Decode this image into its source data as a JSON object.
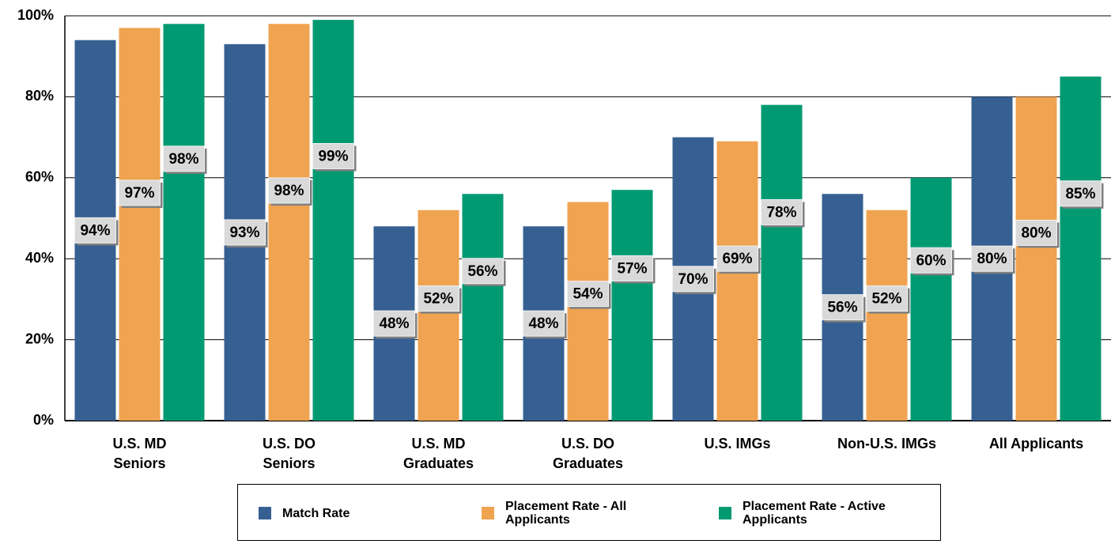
{
  "chart_data": {
    "type": "bar",
    "categories": [
      [
        "U.S. MD",
        "Seniors"
      ],
      [
        "U.S. DO",
        "Seniors"
      ],
      [
        "U.S. MD",
        "Graduates"
      ],
      [
        "U.S. DO",
        "Graduates"
      ],
      [
        "U.S. IMGs"
      ],
      [
        "Non-U.S. IMGs"
      ],
      [
        "All Applicants"
      ]
    ],
    "series": [
      {
        "name": "Match Rate",
        "color": "#376092",
        "values": [
          94,
          93,
          48,
          48,
          70,
          56,
          80
        ],
        "value_labels": [
          "94%",
          "93%",
          "48%",
          "48%",
          "70%",
          "56%",
          "80%"
        ]
      },
      {
        "name": "Placement Rate - All Applicants",
        "color": "#f0a350",
        "values": [
          97,
          98,
          52,
          54,
          69,
          52,
          80
        ],
        "value_labels": [
          "97%",
          "98%",
          "52%",
          "54%",
          "69%",
          "52%",
          "80%"
        ]
      },
      {
        "name": "Placement Rate - Active Applicants",
        "color": "#009a72",
        "values": [
          98,
          99,
          56,
          57,
          78,
          60,
          85
        ],
        "value_labels": [
          "98%",
          "99%",
          "56%",
          "57%",
          "78%",
          "60%",
          "85%"
        ]
      }
    ],
    "ylim": [
      0,
      100
    ],
    "yticks": [
      {
        "value": 0,
        "label": "0%"
      },
      {
        "value": 20,
        "label": "20%"
      },
      {
        "value": 40,
        "label": "40%"
      },
      {
        "value": 60,
        "label": "60%"
      },
      {
        "value": 80,
        "label": "80%"
      },
      {
        "value": 100,
        "label": "100%"
      }
    ],
    "grid": true,
    "legend": "bottom"
  }
}
